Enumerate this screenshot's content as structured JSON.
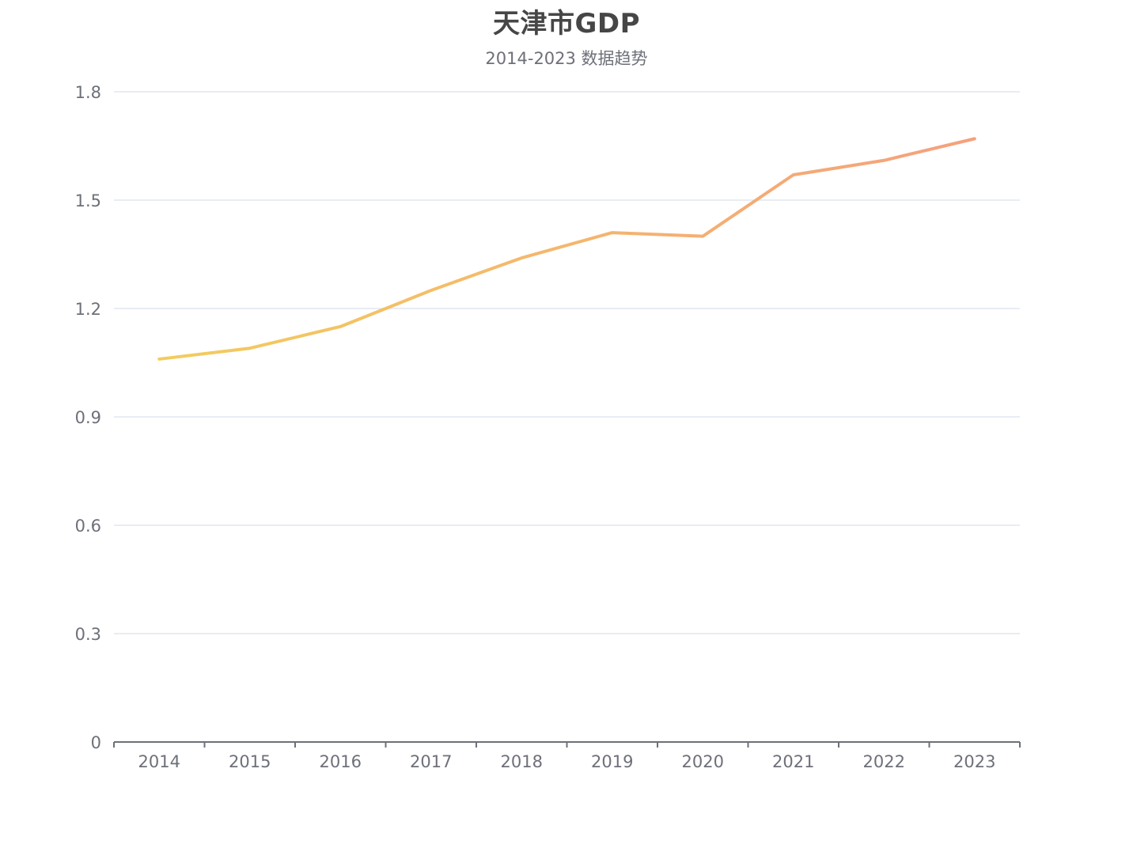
{
  "chart_data": {
    "type": "line",
    "title": "天津市GDP",
    "subtitle": "2014-2023 数据趋势",
    "categories": [
      "2014",
      "2015",
      "2016",
      "2017",
      "2018",
      "2019",
      "2020",
      "2021",
      "2022",
      "2023"
    ],
    "series": [
      {
        "values": [
          1.06,
          1.09,
          1.15,
          1.25,
          1.34,
          1.41,
          1.4,
          1.57,
          1.61,
          1.67
        ]
      }
    ],
    "ylim": [
      0,
      1.8
    ],
    "yticks": [
      "0",
      "0.3",
      "0.6",
      "0.9",
      "1.2",
      "1.5",
      "1.8"
    ],
    "grid": true,
    "line_gradient": [
      "#f3cf5b",
      "#f59e7f"
    ],
    "gridline_color": "#e0e6f1",
    "axis_color": "#6e7079"
  }
}
